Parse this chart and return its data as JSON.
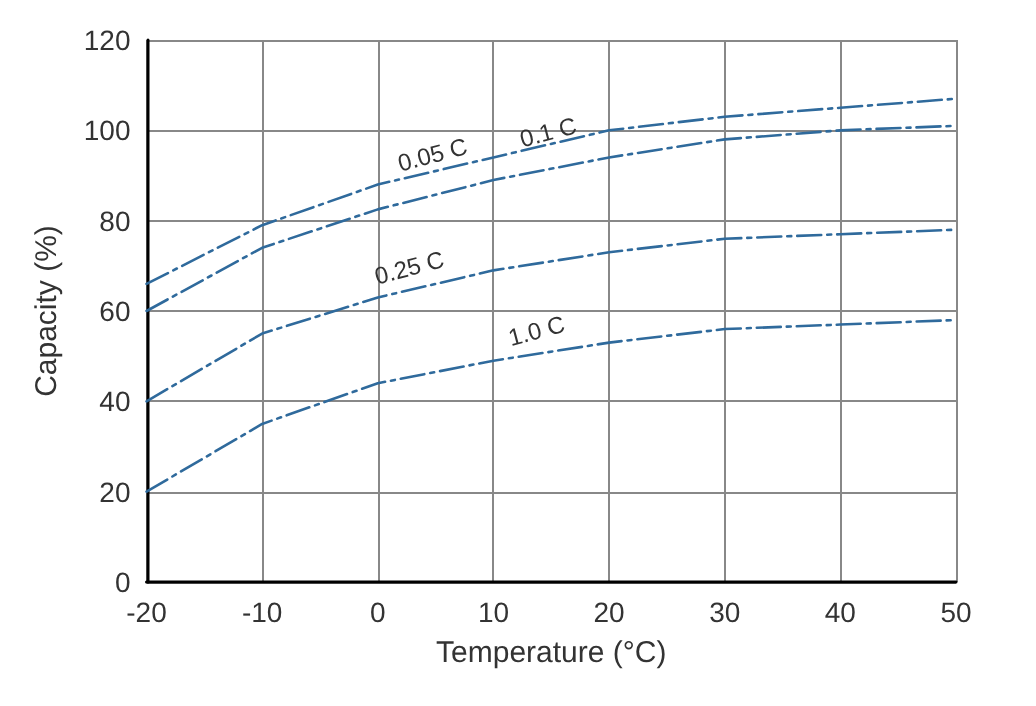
{
  "chart_data": {
    "type": "line",
    "xlabel": "Temperature (°C)",
    "ylabel": "Capacity (%)",
    "x": [
      -20,
      -10,
      0,
      10,
      20,
      30,
      40,
      50
    ],
    "series": [
      {
        "color": "#2f6a9c",
        "values": [
          66,
          79,
          88,
          94,
          100,
          103,
          105,
          107
        ]
      },
      {
        "color": "#2f6a9c",
        "values": [
          60,
          74,
          82.5,
          89,
          94,
          98,
          100,
          101
        ]
      },
      {
        "color": "#2f6a9c",
        "values": [
          40,
          55,
          63,
          69,
          73,
          76,
          77,
          78
        ]
      },
      {
        "color": "#2f6a9c",
        "values": [
          20,
          35,
          44,
          49,
          53,
          56,
          57,
          58
        ]
      }
    ],
    "annotations": [
      {
        "text": "0.05 C",
        "x": 5,
        "y": 92
      },
      {
        "text": "0.1 C",
        "x": 15,
        "y": 97
      },
      {
        "text": "0.25 C",
        "x": 3,
        "y": 67
      },
      {
        "text": "1.0 C",
        "x": 14,
        "y": 53
      }
    ],
    "xlim": [
      -20,
      50
    ],
    "xticks": [
      -20,
      -10,
      0,
      10,
      20,
      30,
      40,
      50
    ],
    "ylim": [
      0,
      120
    ],
    "yticks": [
      0,
      20,
      40,
      60,
      80,
      100,
      120
    ],
    "grid": true,
    "line_style": "dashed",
    "marker": "none"
  }
}
